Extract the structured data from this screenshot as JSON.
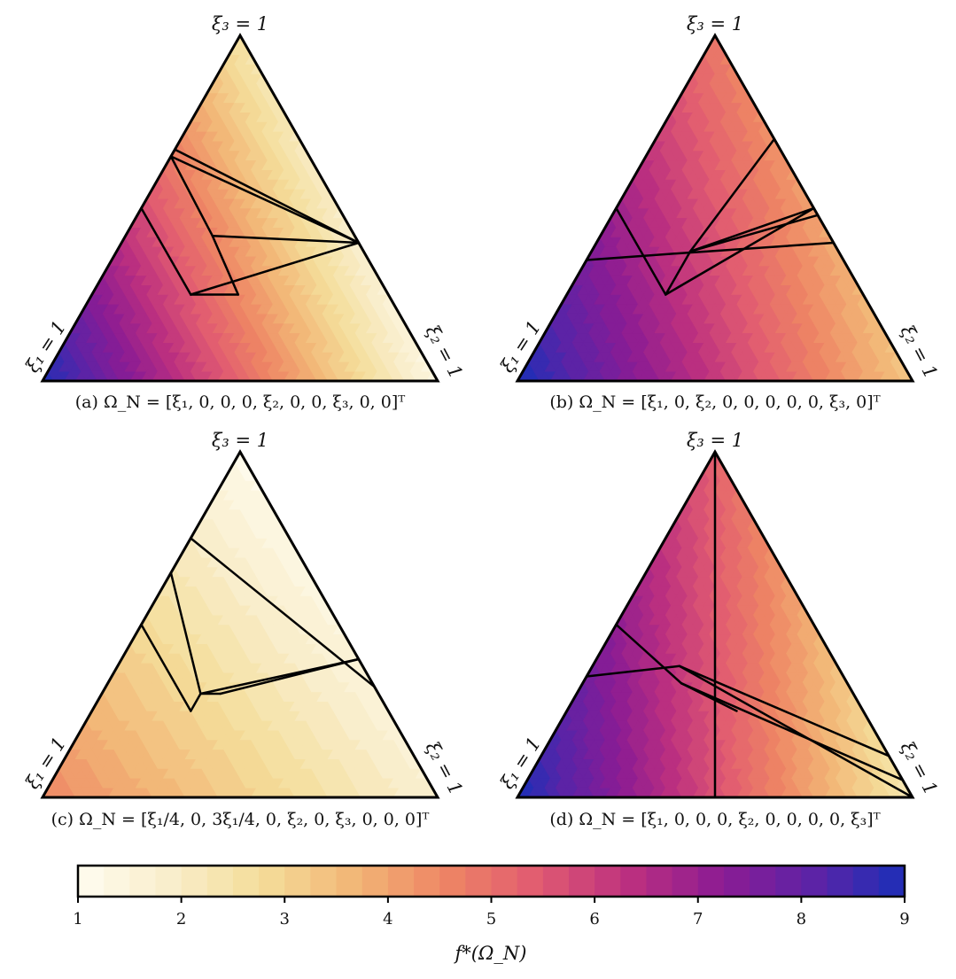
{
  "colormap": {
    "stops": [
      "#fffcf0",
      "#f9eecb",
      "#f4dd9a",
      "#f2b676",
      "#ee8564",
      "#e15b71",
      "#bc307f",
      "#8c1c93",
      "#5d23a6",
      "#1c2fb8"
    ],
    "range": [
      1,
      9
    ],
    "bands": 32
  },
  "chart_data": [
    {
      "type": "heatmap",
      "caption": "(a) Ω_N = [ξ₁, 0, 0, 0, ξ₂, 0, 0, ξ₃, 0, 0]ᵀ",
      "vertex_labels": {
        "xi1": "ξ₁ = 1",
        "xi2": "ξ₂ = 1",
        "xi3": "ξ₃ = 1"
      },
      "vertex_values": {
        "xi1": 9.0,
        "xi2": 1.35,
        "xi3": 2.5
      },
      "lines": [
        [
          [
            0.5,
            0.0,
            0.5
          ],
          [
            0.5,
            0.25,
            0.25
          ]
        ],
        [
          [
            0.5,
            0.25,
            0.25
          ],
          [
            0.38,
            0.37,
            0.25
          ]
        ],
        [
          [
            0.5,
            0.25,
            0.25
          ],
          [
            0.0,
            0.6,
            0.4
          ]
        ],
        [
          [
            0.35,
            0.0,
            0.65
          ],
          [
            0.0,
            0.6,
            0.4
          ]
        ],
        [
          [
            0.36,
            0.22,
            0.42
          ],
          [
            0.0,
            0.6,
            0.4
          ]
        ],
        [
          [
            0.36,
            0.22,
            0.42
          ],
          [
            0.38,
            0.37,
            0.25
          ]
        ],
        [
          [
            0.36,
            0.22,
            0.42
          ],
          [
            0.35,
            0.0,
            0.65
          ]
        ],
        [
          [
            0.33,
            0.0,
            0.67
          ],
          [
            0.0,
            0.6,
            0.4
          ]
        ]
      ]
    },
    {
      "type": "heatmap",
      "caption": "(b) Ω_N = [ξ₁, 0, ξ₂, 0, 0, 0, 0, 0, ξ₃, 0]ᵀ",
      "vertex_labels": {
        "xi1": "ξ₁ = 1",
        "xi2": "ξ₂ = 1",
        "xi3": "ξ₃ = 1"
      },
      "vertex_values": {
        "xi1": 9.0,
        "xi2": 3.3,
        "xi3": 4.8
      },
      "lines": [
        [
          [
            0.5,
            0.0,
            0.5
          ],
          [
            0.5,
            0.25,
            0.25
          ]
        ],
        [
          [
            0.5,
            0.25,
            0.25
          ],
          [
            0.375,
            0.25,
            0.375
          ]
        ],
        [
          [
            0.375,
            0.25,
            0.375
          ],
          [
            0.0,
            0.3,
            0.7
          ]
        ],
        [
          [
            0.375,
            0.25,
            0.375
          ],
          [
            0.0,
            0.5,
            0.5
          ]
        ],
        [
          [
            0.375,
            0.25,
            0.375
          ],
          [
            0.0,
            0.52,
            0.48
          ]
        ],
        [
          [
            0.4,
            0.3,
            0.3
          ],
          [
            0.0,
            0.5,
            0.5
          ]
        ],
        [
          [
            0.4,
            0.3,
            0.3
          ],
          [
            0.5,
            0.25,
            0.25
          ]
        ],
        [
          [
            0.65,
            0.0,
            0.35
          ],
          [
            0.4,
            0.23,
            0.37
          ]
        ],
        [
          [
            0.4,
            0.23,
            0.37
          ],
          [
            0.0,
            0.6,
            0.4
          ]
        ]
      ]
    },
    {
      "type": "heatmap",
      "caption": "(c) Ω_N = [ξ₁/4, 0, 3ξ₁/4, 0, ξ₂, 0, ξ₃, 0, 0, 0]ᵀ",
      "vertex_labels": {
        "xi1": "ξ₁ = 1",
        "xi2": "ξ₂ = 1",
        "xi3": "ξ₃ = 1"
      },
      "vertex_values": {
        "xi1": 4.5,
        "xi2": 1.75,
        "xi3": 1.15
      },
      "lines": [
        [
          [
            0.5,
            0.0,
            0.5
          ],
          [
            0.5,
            0.25,
            0.25
          ]
        ],
        [
          [
            0.5,
            0.25,
            0.25
          ],
          [
            0.45,
            0.25,
            0.3
          ]
        ],
        [
          [
            0.45,
            0.25,
            0.3
          ],
          [
            0.35,
            0.0,
            0.65
          ]
        ],
        [
          [
            0.45,
            0.25,
            0.3
          ],
          [
            0.0,
            0.6,
            0.4
          ]
        ],
        [
          [
            0.45,
            0.25,
            0.3
          ],
          [
            0.4,
            0.3,
            0.3
          ]
        ],
        [
          [
            0.4,
            0.3,
            0.3
          ],
          [
            0.0,
            0.6,
            0.4
          ]
        ],
        [
          [
            0.25,
            0.0,
            0.75
          ],
          [
            0.0,
            0.68,
            0.32
          ]
        ],
        [
          [
            0.0,
            0.0,
            1.0
          ],
          [
            0.0,
            0.4,
            0.6
          ]
        ]
      ]
    },
    {
      "type": "heatmap",
      "caption": "(d) Ω_N = [ξ₁, 0, 0, 0, ξ₂, 0, 0, 0, 0, ξ₃]ᵀ",
      "vertex_labels": {
        "xi1": "ξ₁ = 1",
        "xi2": "ξ₂ = 1",
        "xi3": "ξ₃ = 1"
      },
      "vertex_values": {
        "xi1": 9.0,
        "xi2": 2.3,
        "xi3": 5.3
      },
      "lines": [
        [
          [
            0.0,
            0.0,
            1.0
          ],
          [
            0.5,
            0.5,
            0.0
          ]
        ],
        [
          [
            0.65,
            0.0,
            0.35
          ],
          [
            0.4,
            0.22,
            0.38
          ]
        ],
        [
          [
            0.4,
            0.22,
            0.38
          ],
          [
            0.0,
            0.88,
            0.12
          ]
        ],
        [
          [
            0.4,
            0.22,
            0.38
          ],
          [
            0.0,
            1.0,
            0.0
          ]
        ],
        [
          [
            0.5,
            0.0,
            0.5
          ],
          [
            0.42,
            0.25,
            0.33
          ]
        ],
        [
          [
            0.42,
            0.25,
            0.33
          ],
          [
            0.32,
            0.43,
            0.25
          ]
        ],
        [
          [
            0.42,
            0.25,
            0.33
          ],
          [
            0.0,
            0.95,
            0.05
          ]
        ]
      ]
    }
  ],
  "colorbar": {
    "ticks": [
      "1",
      "2",
      "3",
      "4",
      "5",
      "6",
      "7",
      "8",
      "9"
    ],
    "label": "f*(Ω_N)"
  }
}
